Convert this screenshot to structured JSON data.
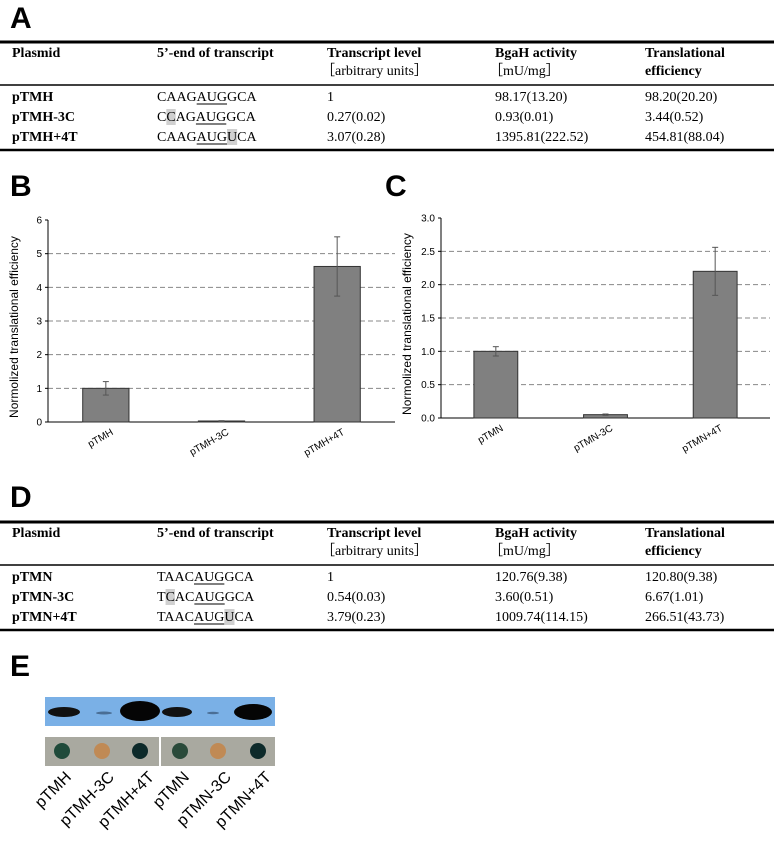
{
  "panel_labels": [
    "A",
    "B",
    "C",
    "D",
    "E"
  ],
  "table_a": {
    "header": [
      "Plasmid",
      "5’-end of transcript",
      [
        "Transcript level",
        "［arbitrary units］"
      ],
      [
        "BgaH activity",
        "［mU/mg］"
      ],
      [
        "Translational",
        "efficiency"
      ]
    ],
    "rows": [
      [
        "pTMH",
        [
          "CAAG",
          "AUG",
          "GCA"
        ],
        "1",
        "98.17(13.20)",
        "98.20(20.20)"
      ],
      [
        "pTMH-3C",
        [
          "C",
          "C",
          "AG",
          "AUG",
          "GCA"
        ],
        "0.27(0.02)",
        "0.93(0.01)",
        "3.44(0.52)"
      ],
      [
        "pTMH+4T",
        [
          "CAAG",
          "AUG",
          "U",
          "CA"
        ],
        "3.07(0.28)",
        "1395.81(222.52)",
        "454.81(88.04)"
      ]
    ]
  },
  "table_d": {
    "header": [
      "Plasmid",
      "5’-end of transcript",
      [
        "Transcript level",
        "［arbitrary units］"
      ],
      [
        "BgaH activity",
        "［mU/mg］"
      ],
      [
        "Translational",
        "efficiency"
      ]
    ],
    "rows": [
      [
        "pTMN",
        [
          "TAAC",
          "AUG",
          "GCA"
        ],
        "1",
        "120.76(9.38)",
        "120.80(9.38)"
      ],
      [
        "pTMN-3C",
        [
          "T",
          "C",
          "AC",
          "AUG",
          "GCA"
        ],
        "0.54(0.03)",
        "3.60(0.51)",
        "6.67(1.01)"
      ],
      [
        "pTMN+4T",
        [
          "TAAC",
          "AUG",
          "U",
          "CA"
        ],
        "3.79(0.23)",
        "1009.74(114.15)",
        "266.51(43.73)"
      ]
    ]
  },
  "chart_data": [
    {
      "type": "bar",
      "y_label": "Normolized translational efficiency",
      "categories": [
        "pTMH",
        "pTMH-3C",
        "pTMH+4T"
      ],
      "values": [
        1,
        0.03,
        4.62
      ],
      "errors": [
        0.2,
        0.01,
        0.88
      ],
      "color": "#808080",
      "ylim": [
        0,
        6
      ],
      "yticks": [
        0,
        1,
        2,
        3,
        4,
        5,
        6
      ],
      "grid": true
    },
    {
      "type": "bar",
      "y_label": "Normolized translational efficiency",
      "categories": [
        "pTMN",
        "pTMN-3C",
        "pTMN+4T"
      ],
      "values": [
        1.0,
        0.05,
        2.2
      ],
      "errors": [
        0.07,
        0.01,
        0.36
      ],
      "color": "#808080",
      "ylim": [
        0,
        3
      ],
      "yticks": [
        {
          "value": 0,
          "label": "0.0"
        },
        {
          "value": 0.5,
          "label": "0.5"
        },
        {
          "value": 1,
          "label": "1.0"
        },
        {
          "value": 1.5,
          "label": "1.5"
        },
        {
          "value": 2,
          "label": "2.0"
        },
        {
          "value": 2.5,
          "label": "2.5"
        },
        {
          "value": 3,
          "label": "3.0"
        }
      ],
      "grid": true
    }
  ],
  "panel_e": {
    "lanes": [
      "pTMH",
      "pTMH-3C",
      "pTMH+4T",
      "pTMN",
      "pTMN-3C",
      "pTMN+4T"
    ]
  }
}
